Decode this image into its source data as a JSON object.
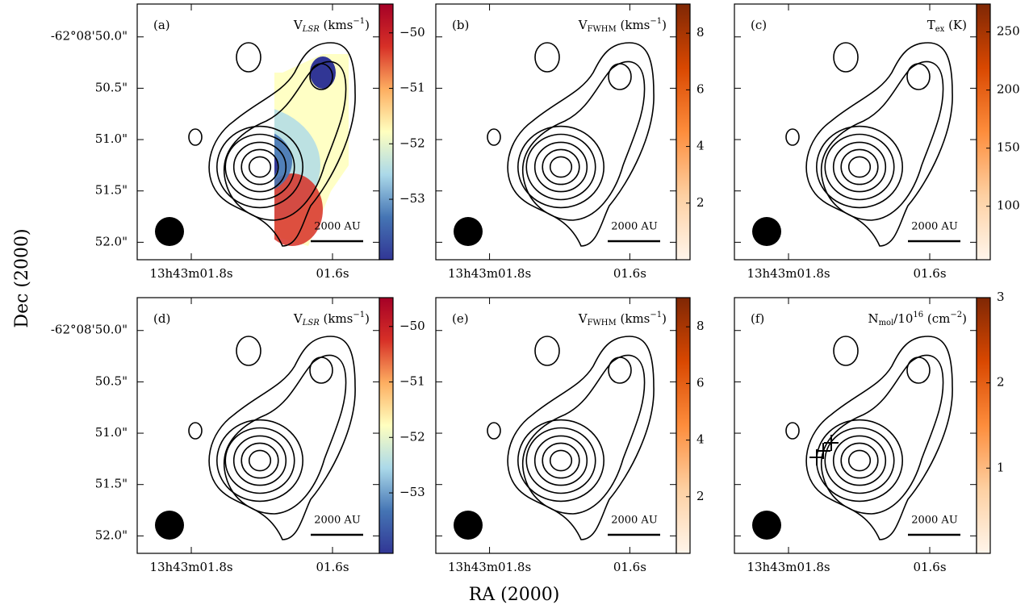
{
  "xlabel": "RA (2000)",
  "ylabel": "Dec (2000)",
  "chart_data": [
    {
      "type": "map",
      "label": "(a)",
      "colorbar_title": [
        {
          "text": "V"
        },
        {
          "text": "LSR",
          "sub": true,
          "italic": true
        },
        {
          "text": " (kms"
        },
        {
          "text": "−1",
          "sup": true
        },
        {
          "text": ")"
        }
      ],
      "xlim": [
        1.8766,
        1.5337
      ],
      "ylim": [
        49.68,
        52.17
      ],
      "xticks": [
        {
          "value": 1.8,
          "label": "13h43m01.8s"
        },
        {
          "value": 1.6,
          "label": "01.6s"
        }
      ],
      "yticks": [
        {
          "value": 50.0,
          "label": "-62°08'50.0\""
        },
        {
          "value": 50.5,
          "label": "50.5\""
        },
        {
          "value": 51.0,
          "label": "51.0\""
        },
        {
          "value": 51.5,
          "label": "51.5\""
        },
        {
          "value": 52.0,
          "label": "52.0\""
        }
      ],
      "clim": [
        -54.09,
        -49.48
      ],
      "cticks": [
        {
          "value": -50,
          "label": "−50"
        },
        {
          "value": -51,
          "label": "−51"
        },
        {
          "value": -52,
          "label": "−52"
        },
        {
          "value": -53,
          "label": "−53"
        }
      ],
      "colors": [
        "#313695",
        "#4575b4",
        "#abd9e9",
        "#ffffbf",
        "#fdae61",
        "#d73027",
        "#a50026"
      ],
      "scalebar": "2000 AU"
    },
    {
      "type": "map",
      "label": "(b)",
      "colorbar_title": [
        {
          "text": "V"
        },
        {
          "text": "FWHM",
          "sub": true
        },
        {
          "text": " (kms"
        },
        {
          "text": "−1",
          "sup": true
        },
        {
          "text": ")"
        }
      ],
      "xlim": [
        1.8766,
        1.5337
      ],
      "ylim": [
        49.68,
        52.17
      ],
      "xticks": [
        {
          "value": 1.8,
          "label": "13h43m01.8s"
        },
        {
          "value": 1.6,
          "label": "01.6s"
        }
      ],
      "yticks": [
        50.0,
        50.5,
        51.0,
        51.5,
        52.0
      ],
      "clim": [
        0,
        9.03
      ],
      "cticks": [
        2,
        4,
        6,
        8
      ],
      "colors": [
        "#fff5eb",
        "#fdd0a2",
        "#fd8d3c",
        "#d94801",
        "#7f2704"
      ],
      "scalebar": "2000 AU"
    },
    {
      "type": "map",
      "label": "(c)",
      "colorbar_title": [
        {
          "text": "T"
        },
        {
          "text": "ex",
          "sub": true
        },
        {
          "text": " (K)"
        }
      ],
      "xlim": [
        1.8766,
        1.5337
      ],
      "ylim": [
        49.68,
        52.17
      ],
      "xticks": [
        {
          "value": 1.8,
          "label": "13h43m01.8s"
        },
        {
          "value": 1.6,
          "label": "01.6s"
        }
      ],
      "yticks": [
        50.0,
        50.5,
        51.0,
        51.5,
        52.0
      ],
      "clim": [
        54,
        274
      ],
      "cticks": [
        100,
        150,
        200,
        250
      ],
      "colors": [
        "#fff5eb",
        "#fdd0a2",
        "#fd8d3c",
        "#d94801",
        "#7f2704"
      ],
      "scalebar": "2000 AU"
    },
    {
      "type": "map",
      "label": "(d)",
      "colorbar_title": [
        {
          "text": "V"
        },
        {
          "text": "LSR",
          "sub": true,
          "italic": true
        },
        {
          "text": " (kms"
        },
        {
          "text": "−1",
          "sup": true
        },
        {
          "text": ")"
        }
      ],
      "xlim": [
        1.8766,
        1.5337
      ],
      "ylim": [
        49.68,
        52.17
      ],
      "xticks": [
        {
          "value": 1.8,
          "label": "13h43m01.8s"
        },
        {
          "value": 1.6,
          "label": "01.6s"
        }
      ],
      "yticks": [
        {
          "value": 50.0,
          "label": "-62°08'50.0\""
        },
        {
          "value": 50.5,
          "label": "50.5\""
        },
        {
          "value": 51.0,
          "label": "51.0\""
        },
        {
          "value": 51.5,
          "label": "51.5\""
        },
        {
          "value": 52.0,
          "label": "52.0\""
        }
      ],
      "clim": [
        -54.09,
        -49.48
      ],
      "cticks": [
        {
          "value": -50,
          "label": "−50"
        },
        {
          "value": -51,
          "label": "−51"
        },
        {
          "value": -52,
          "label": "−52"
        },
        {
          "value": -53,
          "label": "−53"
        }
      ],
      "colors": [
        "#313695",
        "#4575b4",
        "#abd9e9",
        "#ffffbf",
        "#fdae61",
        "#d73027",
        "#a50026"
      ],
      "scalebar": "2000 AU"
    },
    {
      "type": "map",
      "label": "(e)",
      "colorbar_title": [
        {
          "text": "V"
        },
        {
          "text": "FWHM",
          "sub": true
        },
        {
          "text": " (kms"
        },
        {
          "text": "−1",
          "sup": true
        },
        {
          "text": ")"
        }
      ],
      "xlim": [
        1.8766,
        1.5337
      ],
      "ylim": [
        49.68,
        52.17
      ],
      "xticks": [
        {
          "value": 1.8,
          "label": "13h43m01.8s"
        },
        {
          "value": 1.6,
          "label": "01.6s"
        }
      ],
      "yticks": [
        50.0,
        50.5,
        51.0,
        51.5,
        52.0
      ],
      "clim": [
        0,
        9.03
      ],
      "cticks": [
        2,
        4,
        6,
        8
      ],
      "colors": [
        "#fff5eb",
        "#fdd0a2",
        "#fd8d3c",
        "#d94801",
        "#7f2704"
      ],
      "scalebar": "2000 AU"
    },
    {
      "type": "map",
      "label": "(f)",
      "colorbar_title": [
        {
          "text": "N"
        },
        {
          "text": "mol",
          "sub": true
        },
        {
          "text": "/10"
        },
        {
          "text": "16",
          "sup": true
        },
        {
          "text": " (cm"
        },
        {
          "text": "−2",
          "sup": true
        },
        {
          "text": ")"
        }
      ],
      "xlim": [
        1.8766,
        1.5337
      ],
      "ylim": [
        49.68,
        52.17
      ],
      "xticks": [
        {
          "value": 1.8,
          "label": "13h43m01.8s"
        },
        {
          "value": 1.6,
          "label": "01.6s"
        }
      ],
      "yticks": [
        50.0,
        50.5,
        51.0,
        51.5,
        52.0
      ],
      "clim": [
        0,
        3.0
      ],
      "cticks": [
        1,
        2,
        3
      ],
      "colors": [
        "#fff5eb",
        "#fdd0a2",
        "#fd8d3c",
        "#d94801",
        "#7f2704"
      ],
      "scalebar": "2000 AU"
    }
  ]
}
